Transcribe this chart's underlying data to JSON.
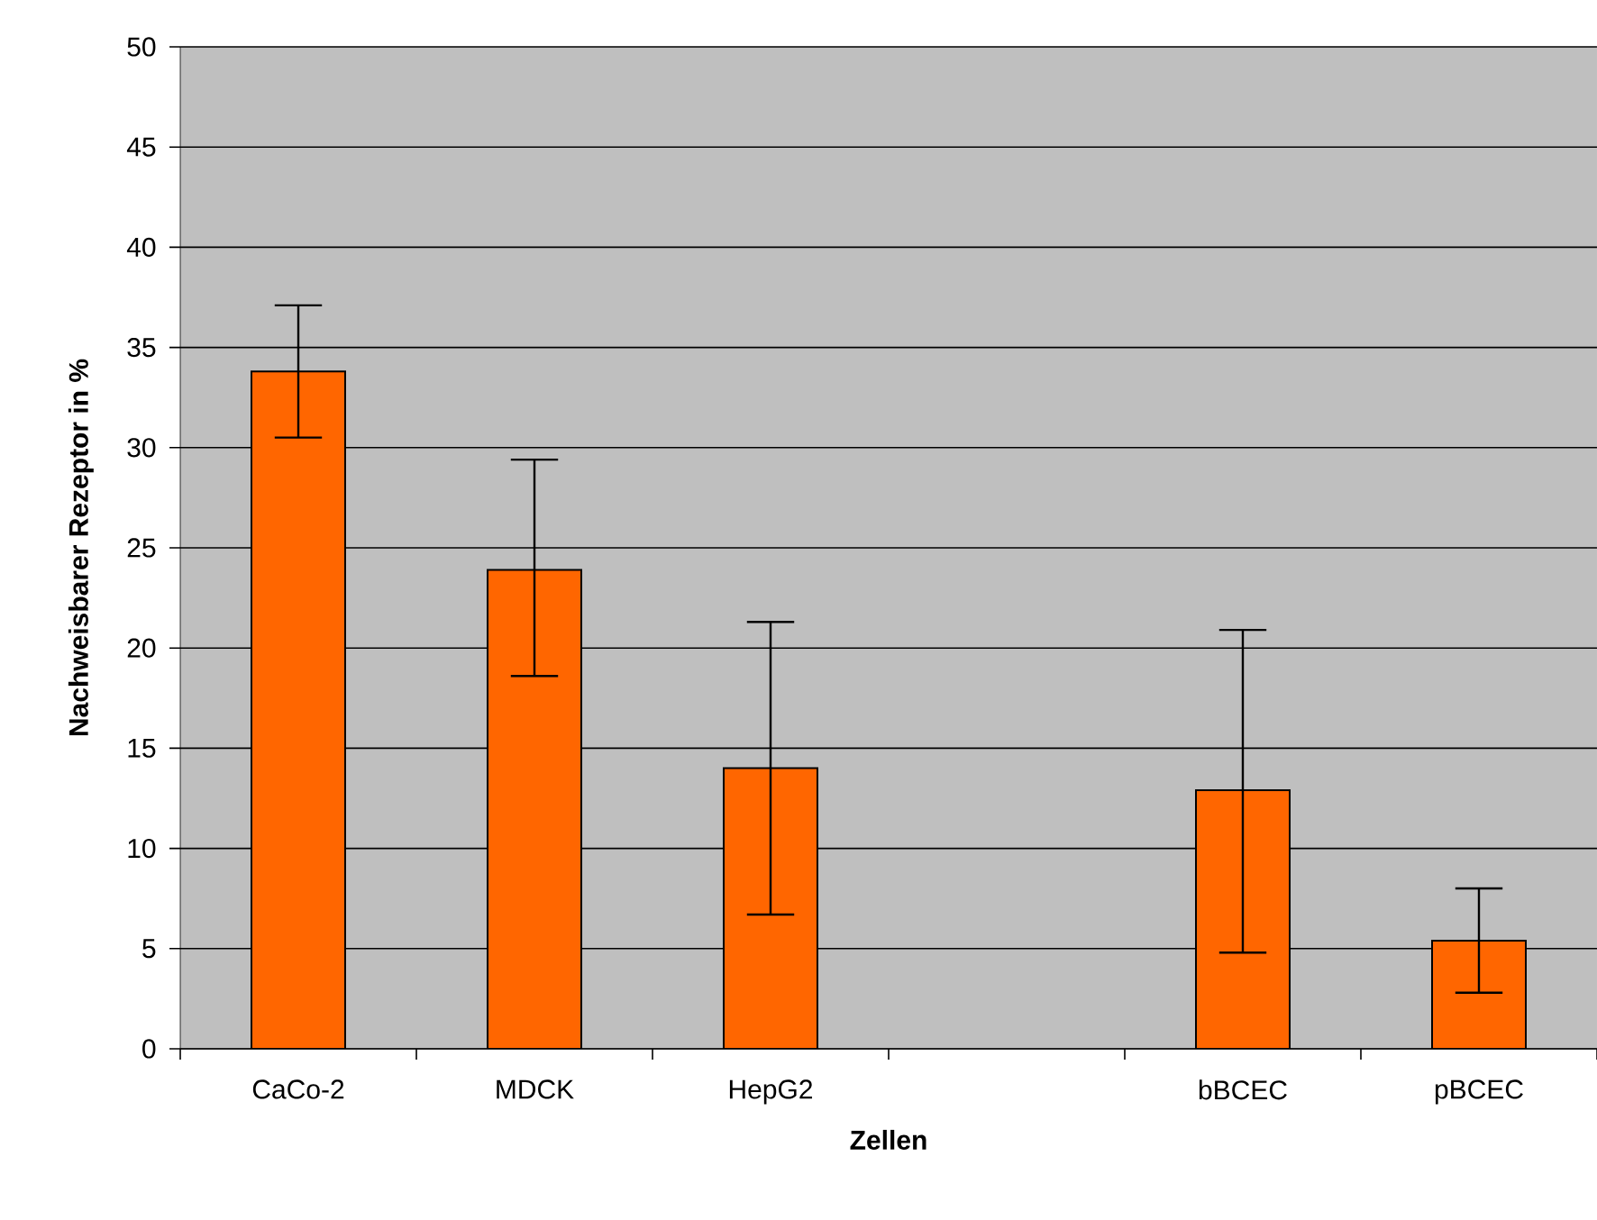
{
  "chart_data": {
    "type": "bar",
    "xlabel": "Zellen",
    "ylabel": "Nachweisbarer Rezeptor in %",
    "categories": [
      "CaCo-2",
      "MDCK",
      "HepG2",
      null,
      "bBCEC",
      "pBCEC"
    ],
    "values": [
      33.8,
      23.9,
      14.0,
      null,
      12.9,
      5.4
    ],
    "errors": [
      [
        30.5,
        37.1
      ],
      [
        18.6,
        29.4
      ],
      [
        6.7,
        21.3
      ],
      null,
      [
        4.8,
        20.9
      ],
      [
        2.8,
        8.0
      ]
    ],
    "color": "#ff6600",
    "ylim": [
      0,
      50
    ],
    "yticks": [
      0,
      5,
      10,
      15,
      20,
      25,
      30,
      35,
      40,
      45,
      50
    ],
    "grid": "y"
  }
}
